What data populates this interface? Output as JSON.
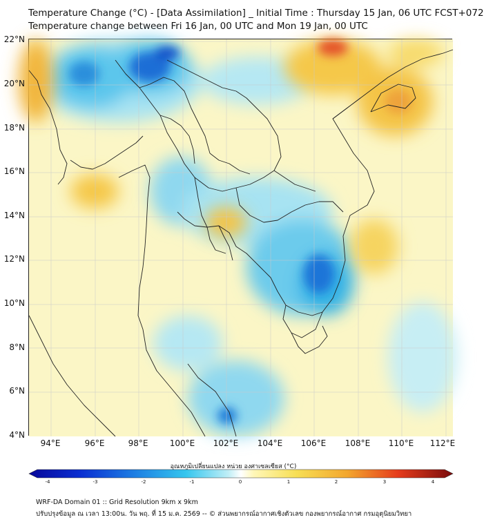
{
  "title": {
    "line1": "Temperature Change (°C) - [Data Assimilation] _ Initial Time : Thursday 15 Jan, 06 UTC FCST+072",
    "line2": "Temperature change between Fri 16 Jan, 00 UTC and Mon 19 Jan, 00 UTC"
  },
  "map": {
    "lat_labels": [
      "22°N",
      "20°N",
      "18°N",
      "16°N",
      "14°N",
      "12°N",
      "10°N",
      "8°N",
      "6°N",
      "4°N"
    ],
    "lon_labels": [
      "94°E",
      "96°E",
      "98°E",
      "100°E",
      "102°E",
      "104°E",
      "106°E",
      "108°E",
      "110°E",
      "112°E"
    ],
    "colors": {
      "neutral": "#fbf6c6",
      "warm": "#f2b53a",
      "hot": "#e4532a",
      "cool": "#a7e3f2",
      "cold": "#35b3e6",
      "coldest": "#1552c9",
      "border": "#222222"
    }
  },
  "colorbar": {
    "title": "อุณหภูมิเปลี่ยนแปลง หน่วย องศาเซลเซียส (°C)",
    "min": -4,
    "max": 4,
    "tick_labels": [
      "-4",
      "-3",
      "-2",
      "-1",
      "0",
      "1",
      "2",
      "3",
      "4"
    ]
  },
  "footer": {
    "line1": "WRF-DA Domain 01 :: Grid Resolution 9km x 9km",
    "line2": "ปรับปรุงข้อมูล ณ เวลา 13:00น. วัน พฤ. ที่ 15 ม.ค. 2569 -- © ส่วนพยากรณ์อากาศเชิงตัวเลข กองพยากรณ์อากาศ กรมอุตุนิยมวิทยา"
  }
}
